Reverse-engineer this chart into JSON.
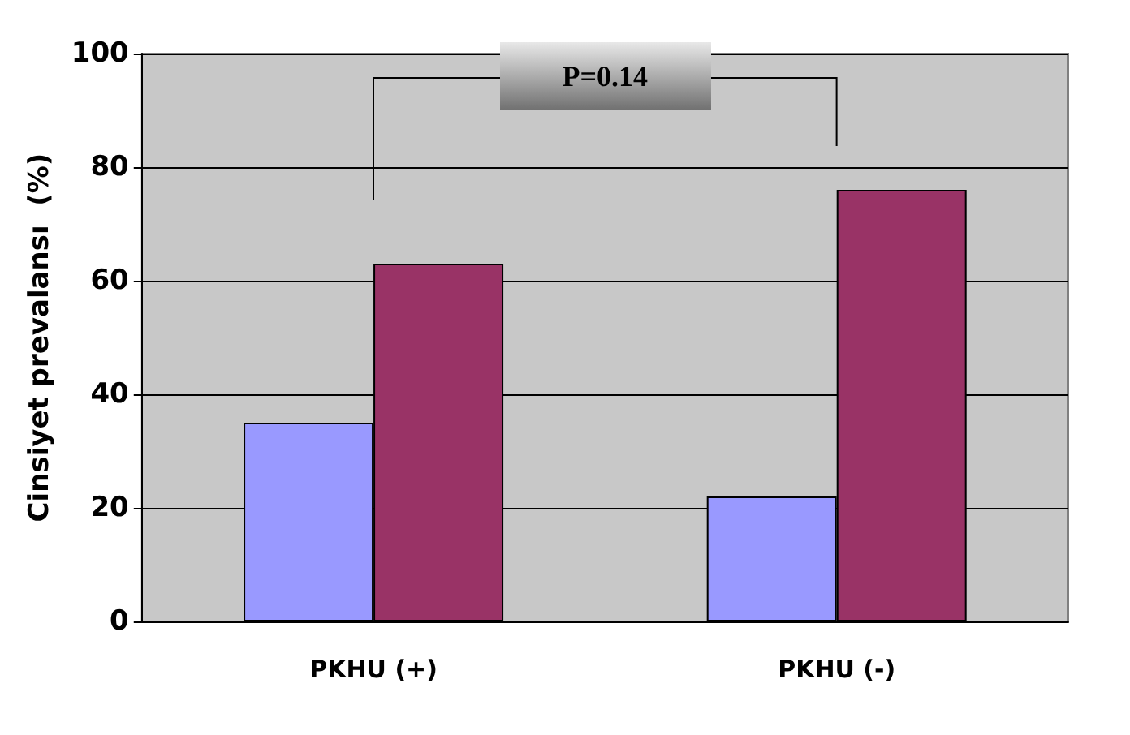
{
  "chart_data": {
    "type": "bar",
    "ylabel": "Cinsiyet prevalansı  (%)",
    "categories": [
      "PKHU (+)",
      "PKHU (-)"
    ],
    "series": [
      {
        "color": "#9999ff",
        "values": [
          35,
          22
        ]
      },
      {
        "color": "#993366",
        "values": [
          63,
          76
        ]
      }
    ],
    "ylim": [
      0,
      100
    ],
    "yticks": [
      0,
      20,
      40,
      60,
      80,
      100
    ],
    "grid": "y",
    "annotations": [
      "P=0.14"
    ]
  }
}
